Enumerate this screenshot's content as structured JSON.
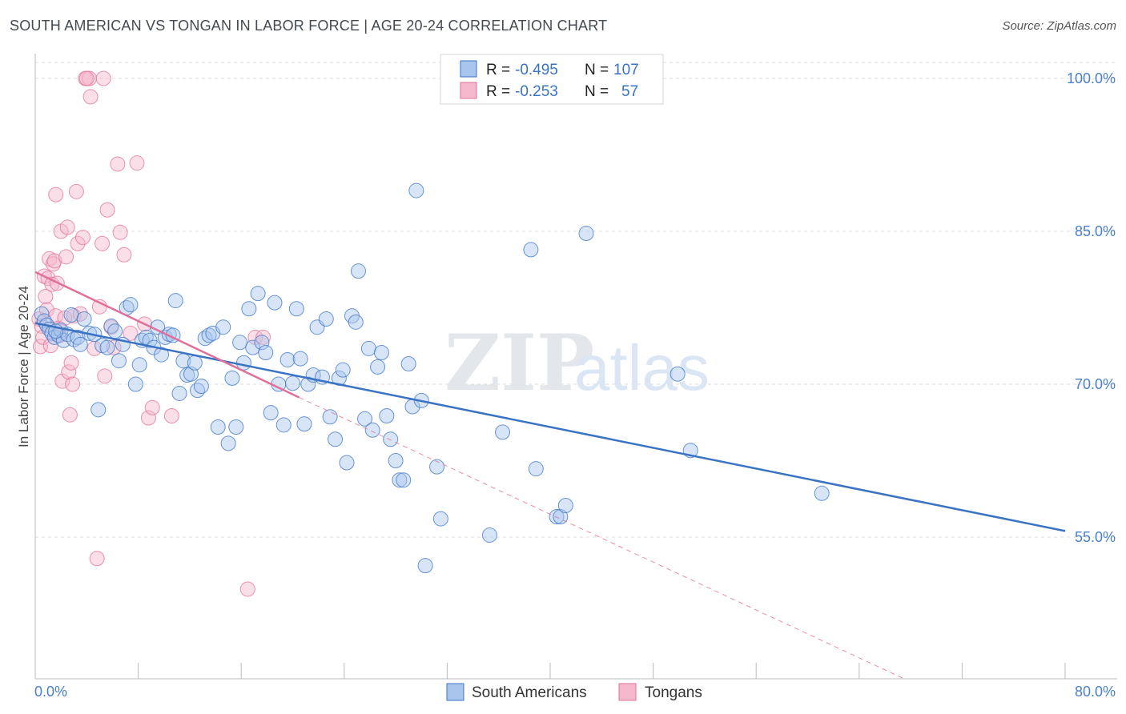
{
  "title": "SOUTH AMERICAN VS TONGAN IN LABOR FORCE | AGE 20-24 CORRELATION CHART",
  "source": "Source: ZipAtlas.com",
  "watermark": {
    "zip": "ZIP",
    "atlas": "atlas"
  },
  "colors": {
    "blue": "#3b73c4",
    "blue_fill": "#a8c5ee",
    "pink": "#e0709a",
    "pink_fill": "#f4b9cd",
    "grid": "#dddddd"
  },
  "legend": {
    "r_label": "R =",
    "n_label": "N =",
    "rows": [
      {
        "r": "-0.495",
        "n": "107"
      },
      {
        "r": "-0.253",
        "n": "57"
      }
    ]
  },
  "bottom_legend": [
    "South Americans",
    "Tongans"
  ],
  "chart_data": {
    "type": "scatter",
    "title": "SOUTH AMERICAN VS TONGAN IN LABOR FORCE | AGE 20-24 CORRELATION CHART",
    "xlabel": "",
    "ylabel": "In Labor Force | Age 20-24",
    "xlim": [
      0,
      80
    ],
    "ylim": [
      40,
      101.5
    ],
    "x_tick_labels": [
      "0.0%",
      "80.0%"
    ],
    "y_ticks": [
      55,
      70,
      85,
      100
    ],
    "y_tick_labels": [
      "55.0%",
      "70.0%",
      "85.0%",
      "100.0%"
    ],
    "grid": true,
    "legend_position": "top-center",
    "series": [
      {
        "name": "South Americans",
        "r": -0.495,
        "n": 107,
        "trend": {
          "x": [
            0,
            80
          ],
          "y": [
            76.0,
            55.6
          ]
        },
        "points": [
          [
            0.5,
            76.9
          ],
          [
            0.7,
            76.2
          ],
          [
            0.9,
            75.8
          ],
          [
            1.1,
            75.4
          ],
          [
            1.3,
            75.0
          ],
          [
            1.5,
            74.6
          ],
          [
            1.8,
            74.8
          ],
          [
            2.0,
            75.3
          ],
          [
            2.2,
            74.3
          ],
          [
            2.5,
            74.9
          ],
          [
            2.8,
            76.8
          ],
          [
            3.0,
            74.4
          ],
          [
            3.3,
            74.6
          ],
          [
            3.5,
            73.9
          ],
          [
            3.8,
            76.4
          ],
          [
            4.2,
            75.0
          ],
          [
            4.6,
            74.9
          ],
          [
            4.9,
            67.5
          ],
          [
            5.2,
            73.8
          ],
          [
            5.6,
            73.6
          ],
          [
            5.9,
            75.7
          ],
          [
            6.2,
            75.2
          ],
          [
            6.5,
            72.3
          ],
          [
            6.8,
            73.9
          ],
          [
            7.1,
            77.5
          ],
          [
            7.4,
            77.8
          ],
          [
            7.8,
            70.0
          ],
          [
            8.1,
            71.9
          ],
          [
            8.3,
            74.3
          ],
          [
            8.6,
            74.6
          ],
          [
            8.9,
            74.3
          ],
          [
            9.2,
            73.6
          ],
          [
            9.5,
            75.6
          ],
          [
            9.8,
            72.9
          ],
          [
            10.1,
            74.6
          ],
          [
            10.4,
            74.9
          ],
          [
            10.7,
            74.8
          ],
          [
            10.9,
            78.2
          ],
          [
            11.2,
            69.1
          ],
          [
            11.5,
            72.3
          ],
          [
            11.8,
            70.9
          ],
          [
            12.1,
            71.0
          ],
          [
            12.4,
            72.1
          ],
          [
            12.6,
            69.4
          ],
          [
            12.9,
            69.8
          ],
          [
            13.2,
            74.5
          ],
          [
            13.5,
            74.8
          ],
          [
            13.8,
            75.0
          ],
          [
            14.2,
            65.8
          ],
          [
            14.6,
            75.6
          ],
          [
            15.0,
            64.2
          ],
          [
            15.3,
            70.6
          ],
          [
            15.6,
            65.8
          ],
          [
            15.9,
            74.1
          ],
          [
            16.2,
            72.1
          ],
          [
            16.6,
            77.4
          ],
          [
            16.9,
            73.6
          ],
          [
            17.3,
            78.9
          ],
          [
            17.6,
            74.1
          ],
          [
            17.9,
            73.1
          ],
          [
            18.3,
            67.2
          ],
          [
            18.6,
            78.0
          ],
          [
            18.9,
            70.0
          ],
          [
            19.3,
            66.0
          ],
          [
            19.6,
            72.4
          ],
          [
            20.0,
            70.1
          ],
          [
            20.3,
            77.4
          ],
          [
            20.6,
            72.5
          ],
          [
            20.9,
            66.1
          ],
          [
            21.2,
            70.0
          ],
          [
            21.6,
            70.9
          ],
          [
            21.9,
            75.6
          ],
          [
            22.3,
            70.7
          ],
          [
            22.6,
            76.4
          ],
          [
            22.9,
            66.8
          ],
          [
            23.3,
            64.6
          ],
          [
            23.6,
            70.6
          ],
          [
            23.9,
            71.4
          ],
          [
            24.2,
            62.3
          ],
          [
            24.6,
            76.7
          ],
          [
            24.9,
            76.1
          ],
          [
            25.1,
            81.1
          ],
          [
            25.6,
            66.6
          ],
          [
            25.9,
            73.5
          ],
          [
            26.2,
            65.5
          ],
          [
            26.6,
            71.7
          ],
          [
            26.9,
            73.1
          ],
          [
            27.3,
            66.9
          ],
          [
            27.6,
            64.6
          ],
          [
            28.0,
            62.5
          ],
          [
            28.3,
            60.6
          ],
          [
            28.6,
            60.6
          ],
          [
            29.0,
            72.0
          ],
          [
            29.3,
            67.8
          ],
          [
            29.6,
            89.0
          ],
          [
            30.0,
            68.4
          ],
          [
            30.3,
            52.2
          ],
          [
            31.2,
            61.9
          ],
          [
            31.5,
            56.8
          ],
          [
            35.3,
            55.2
          ],
          [
            36.3,
            65.3
          ],
          [
            38.5,
            83.2
          ],
          [
            38.9,
            61.7
          ],
          [
            40.5,
            57.0
          ],
          [
            40.8,
            57.0
          ],
          [
            41.2,
            58.1
          ],
          [
            42.8,
            84.8
          ],
          [
            49.9,
            71.0
          ],
          [
            50.9,
            63.5
          ],
          [
            61.1,
            59.3
          ],
          [
            1.6,
            75.2
          ]
        ]
      },
      {
        "name": "Tongans",
        "r": -0.253,
        "n": 57,
        "trend": {
          "x": [
            0,
            20.5
          ],
          "y": [
            81.0,
            68.7
          ]
        },
        "trend_extended": {
          "x": [
            20.5,
            67.5
          ],
          "y": [
            68.7,
            40.0
          ]
        },
        "points": [
          [
            0.3,
            76.4
          ],
          [
            0.4,
            73.7
          ],
          [
            0.5,
            75.7
          ],
          [
            0.6,
            74.6
          ],
          [
            0.7,
            80.6
          ],
          [
            0.8,
            78.6
          ],
          [
            0.9,
            77.3
          ],
          [
            1.0,
            80.4
          ],
          [
            1.1,
            82.3
          ],
          [
            1.2,
            73.8
          ],
          [
            1.3,
            79.8
          ],
          [
            1.4,
            81.8
          ],
          [
            1.5,
            82.1
          ],
          [
            1.6,
            76.7
          ],
          [
            1.7,
            79.9
          ],
          [
            1.8,
            75.5
          ],
          [
            1.9,
            74.8
          ],
          [
            2.0,
            85.0
          ],
          [
            2.1,
            70.3
          ],
          [
            2.3,
            76.5
          ],
          [
            2.4,
            82.5
          ],
          [
            2.5,
            85.4
          ],
          [
            2.6,
            71.2
          ],
          [
            2.7,
            67.0
          ],
          [
            2.8,
            72.1
          ],
          [
            2.9,
            70.0
          ],
          [
            3.0,
            76.7
          ],
          [
            3.2,
            88.9
          ],
          [
            3.3,
            83.8
          ],
          [
            3.5,
            76.9
          ],
          [
            3.7,
            84.4
          ],
          [
            3.9,
            100.0
          ],
          [
            4.2,
            100.0
          ],
          [
            4.3,
            98.2
          ],
          [
            4.6,
            73.5
          ],
          [
            4.8,
            52.9
          ],
          [
            5.0,
            77.6
          ],
          [
            5.2,
            83.8
          ],
          [
            5.4,
            70.8
          ],
          [
            5.6,
            87.1
          ],
          [
            5.9,
            75.6
          ],
          [
            6.1,
            73.6
          ],
          [
            6.4,
            91.6
          ],
          [
            6.6,
            84.9
          ],
          [
            6.9,
            82.7
          ],
          [
            7.4,
            75.0
          ],
          [
            7.9,
            91.7
          ],
          [
            8.5,
            75.9
          ],
          [
            8.8,
            66.7
          ],
          [
            9.1,
            67.7
          ],
          [
            10.6,
            66.9
          ],
          [
            16.5,
            49.9
          ],
          [
            17.1,
            74.6
          ],
          [
            17.7,
            74.6
          ],
          [
            4.0,
            100.0
          ],
          [
            5.3,
            100.0
          ],
          [
            1.6,
            88.6
          ]
        ]
      }
    ]
  }
}
